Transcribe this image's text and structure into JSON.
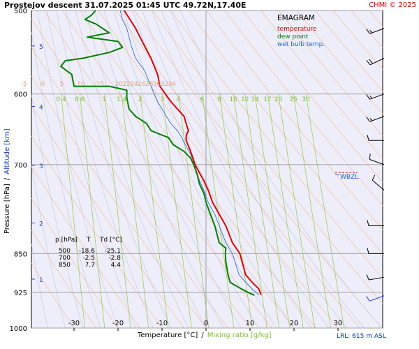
{
  "header": {
    "title": "Prostejov descent 31.07.2025 01:45 UTC 49.72N,17.40E",
    "brand": "CHMI © 2025"
  },
  "axes": {
    "pressure_label": "Pressure [hPa]",
    "axis_separator": "/",
    "altitude_label": "Altitude [km]",
    "temperature_label": "Temperature [°C]",
    "mixing_ratio_label": "Mixing ratio [g/kg]",
    "pressure_ticks": [
      "500",
      "600",
      "700",
      "850",
      "925",
      "1000"
    ],
    "altitude_ticks": [
      "5",
      "4",
      "3",
      "2",
      "1"
    ],
    "temperature_ticks": [
      "-30",
      "-20",
      "-10",
      "0",
      "10",
      "20",
      "30"
    ],
    "mixing_ratio_labels": [
      "0.4",
      "0.6",
      "1",
      "1.4",
      "2",
      "3",
      "4",
      "6",
      "8",
      "10",
      "12",
      "14",
      "17",
      "20",
      "25",
      "30"
    ],
    "potential_temp_labels": [
      "-5",
      "0",
      "5",
      "10",
      "15",
      "20",
      "22",
      "24",
      "26",
      "28",
      "30",
      "32",
      "34"
    ]
  },
  "legend": {
    "title": "EMAGRAM",
    "items": [
      {
        "label": "temperature",
        "color": "#e00000"
      },
      {
        "label": "dew point",
        "color": "#008000"
      },
      {
        "label": "wet bulb temp.",
        "color": "#2060d0"
      }
    ]
  },
  "markers": {
    "wbzl": "WBZL",
    "lrl": "LRL: 615 m ASL"
  },
  "table": {
    "headers": [
      "p [hPa]",
      "T",
      "Td [°C]"
    ],
    "rows": [
      [
        "500",
        "-18.6",
        "-25.1"
      ],
      [
        "700",
        "-2.5",
        "-2.8"
      ],
      [
        "850",
        "7.7",
        "4.4"
      ]
    ]
  },
  "chart_data": {
    "type": "line",
    "diagram": "emagram",
    "x_unit": "°C",
    "y_unit": "hPa",
    "y_scale": "log",
    "xlim": [
      -38,
      40
    ],
    "ylim": [
      1000,
      500
    ],
    "series": [
      {
        "name": "temperature",
        "color": "#e00000",
        "points": [
          [
            12.5,
            930
          ],
          [
            12,
            918
          ],
          [
            10.5,
            905
          ],
          [
            9,
            890
          ],
          [
            7.7,
            850
          ],
          [
            6,
            830
          ],
          [
            4.5,
            800
          ],
          [
            3,
            780
          ],
          [
            1.5,
            760
          ],
          [
            0.5,
            740
          ],
          [
            -0.5,
            725
          ],
          [
            -2.5,
            700
          ],
          [
            -3.5,
            680
          ],
          [
            -4.5,
            664
          ],
          [
            -4.5,
            657
          ],
          [
            -4,
            650
          ],
          [
            -4.5,
            640
          ],
          [
            -5,
            630
          ],
          [
            -8,
            610
          ],
          [
            -10.5,
            590
          ],
          [
            -11,
            575
          ],
          [
            -12.5,
            555
          ],
          [
            -14,
            540
          ],
          [
            -15,
            530
          ],
          [
            -16,
            520
          ],
          [
            -17,
            512
          ],
          [
            -18.6,
            500
          ]
        ]
      },
      {
        "name": "dew point",
        "color": "#008000",
        "points": [
          [
            11,
            931
          ],
          [
            9.5,
            925
          ],
          [
            8,
            918
          ],
          [
            5.5,
            905
          ],
          [
            5,
            890
          ],
          [
            4.5,
            865
          ],
          [
            4.4,
            850
          ],
          [
            4.5,
            840
          ],
          [
            3,
            830
          ],
          [
            2,
            800
          ],
          [
            1,
            780
          ],
          [
            0,
            760
          ],
          [
            -0.5,
            745
          ],
          [
            -1.5,
            730
          ],
          [
            -2,
            715
          ],
          [
            -2.8,
            700
          ],
          [
            -3.5,
            690
          ],
          [
            -5,
            680
          ],
          [
            -7.5,
            670
          ],
          [
            -8.5,
            660
          ],
          [
            -10.5,
            655
          ],
          [
            -12.5,
            650
          ],
          [
            -13.5,
            640
          ],
          [
            -16,
            630
          ],
          [
            -17.5,
            620
          ],
          [
            -18,
            605
          ],
          [
            -18,
            595
          ],
          [
            -22,
            590
          ],
          [
            -30,
            590
          ],
          [
            -30.5,
            575
          ],
          [
            -33,
            565
          ],
          [
            -32,
            558
          ],
          [
            -28,
            555
          ],
          [
            -22,
            548
          ],
          [
            -19,
            542
          ],
          [
            -20,
            535
          ],
          [
            -27,
            530
          ],
          [
            -22,
            525
          ],
          [
            -25,
            515
          ],
          [
            -27.5,
            510
          ],
          [
            -26,
            505
          ],
          [
            -25.1,
            500
          ]
        ]
      },
      {
        "name": "wet bulb temp.",
        "color": "#2060d0",
        "points": [
          [
            12,
            930
          ],
          [
            10.5,
            918
          ],
          [
            9,
            905
          ],
          [
            7.5,
            890
          ],
          [
            6,
            850
          ],
          [
            4.5,
            830
          ],
          [
            3,
            800
          ],
          [
            2,
            780
          ],
          [
            0.5,
            760
          ],
          [
            -0.5,
            740
          ],
          [
            -1.5,
            725
          ],
          [
            -2.6,
            700
          ],
          [
            -3.5,
            684
          ],
          [
            -5,
            667
          ],
          [
            -5.5,
            660
          ],
          [
            -6.5,
            650
          ],
          [
            -8,
            640
          ],
          [
            -9,
            630
          ],
          [
            -11,
            610
          ],
          [
            -12.5,
            590
          ],
          [
            -14,
            570
          ],
          [
            -16,
            555
          ],
          [
            -17,
            540
          ],
          [
            -18,
            520
          ],
          [
            -19,
            510
          ],
          [
            -19.5,
            500
          ]
        ]
      }
    ],
    "winds": [
      {
        "p": 520,
        "dir": 250,
        "spd": 15
      },
      {
        "p": 555,
        "dir": 245,
        "spd": 20
      },
      {
        "p": 600,
        "dir": 250,
        "spd": 15
      },
      {
        "p": 630,
        "dir": 250,
        "spd": 15
      },
      {
        "p": 664,
        "dir": 270,
        "spd": 10
      },
      {
        "p": 700,
        "dir": 290,
        "spd": 10
      },
      {
        "p": 740,
        "dir": 310,
        "spd": 10
      },
      {
        "p": 800,
        "dir": 270,
        "spd": 10
      },
      {
        "p": 850,
        "dir": 270,
        "spd": 10
      },
      {
        "p": 895,
        "dir": 260,
        "spd": 10
      },
      {
        "p": 932,
        "dir": 250,
        "spd": 10
      }
    ]
  }
}
